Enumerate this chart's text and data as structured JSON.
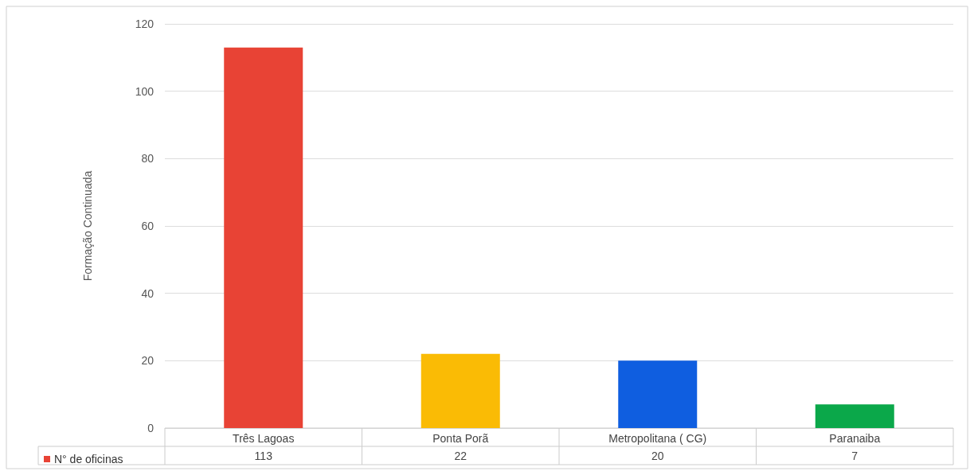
{
  "chart_data": {
    "type": "bar",
    "ylabel": "Formação Continuada",
    "categories": [
      "Três Lagoas",
      "Ponta Porã",
      "Metropolitana ( CG)",
      "Paranaiba"
    ],
    "series": [
      {
        "name": "N° de oficinas",
        "color": "#e84335",
        "colors": [
          "#e84335",
          "#fabb05",
          "#0f5ee0",
          "#0ba84a"
        ],
        "values": [
          113,
          22,
          20,
          7
        ]
      }
    ],
    "ylim": [
      0,
      120
    ],
    "yticks": [
      0,
      20,
      40,
      60,
      80,
      100,
      120
    ],
    "grid": "y",
    "legend": "bottom left",
    "data_labels": true
  }
}
